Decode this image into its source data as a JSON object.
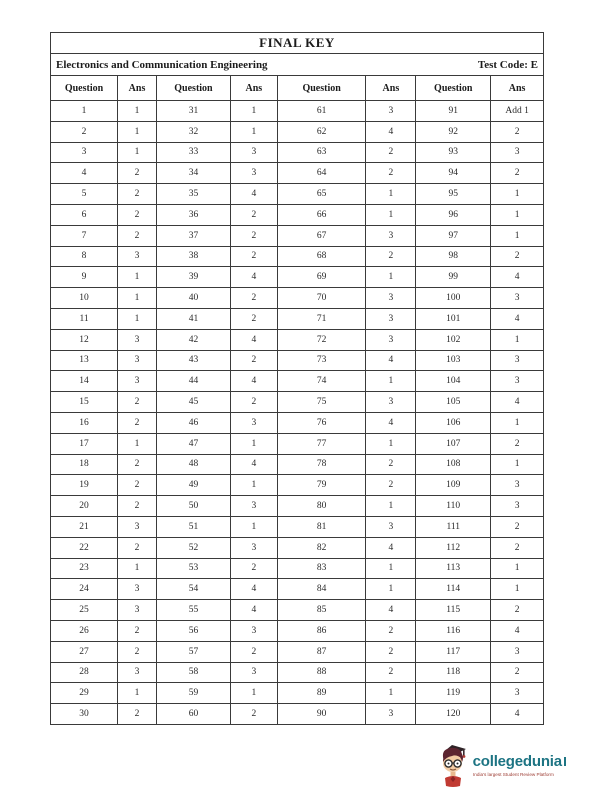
{
  "header": {
    "title": "FINAL KEY",
    "subject": "Electronics and Communication Engineering",
    "test_code": "Test Code: E"
  },
  "table": {
    "column_headers": [
      "Question",
      "Ans",
      "Question",
      "Ans",
      "Question",
      "Ans",
      "Question",
      "Ans"
    ],
    "rows": [
      [
        "1",
        "1",
        "31",
        "1",
        "61",
        "3",
        "91",
        "Add 1"
      ],
      [
        "2",
        "1",
        "32",
        "1",
        "62",
        "4",
        "92",
        "2"
      ],
      [
        "3",
        "1",
        "33",
        "3",
        "63",
        "2",
        "93",
        "3"
      ],
      [
        "4",
        "2",
        "34",
        "3",
        "64",
        "2",
        "94",
        "2"
      ],
      [
        "5",
        "2",
        "35",
        "4",
        "65",
        "1",
        "95",
        "1"
      ],
      [
        "6",
        "2",
        "36",
        "2",
        "66",
        "1",
        "96",
        "1"
      ],
      [
        "7",
        "2",
        "37",
        "2",
        "67",
        "3",
        "97",
        "1"
      ],
      [
        "8",
        "3",
        "38",
        "2",
        "68",
        "2",
        "98",
        "2"
      ],
      [
        "9",
        "1",
        "39",
        "4",
        "69",
        "1",
        "99",
        "4"
      ],
      [
        "10",
        "1",
        "40",
        "2",
        "70",
        "3",
        "100",
        "3"
      ],
      [
        "11",
        "1",
        "41",
        "2",
        "71",
        "3",
        "101",
        "4"
      ],
      [
        "12",
        "3",
        "42",
        "4",
        "72",
        "3",
        "102",
        "1"
      ],
      [
        "13",
        "3",
        "43",
        "2",
        "73",
        "4",
        "103",
        "3"
      ],
      [
        "14",
        "3",
        "44",
        "4",
        "74",
        "1",
        "104",
        "3"
      ],
      [
        "15",
        "2",
        "45",
        "2",
        "75",
        "3",
        "105",
        "4"
      ],
      [
        "16",
        "2",
        "46",
        "3",
        "76",
        "4",
        "106",
        "1"
      ],
      [
        "17",
        "1",
        "47",
        "1",
        "77",
        "1",
        "107",
        "2"
      ],
      [
        "18",
        "2",
        "48",
        "4",
        "78",
        "2",
        "108",
        "1"
      ],
      [
        "19",
        "2",
        "49",
        "1",
        "79",
        "2",
        "109",
        "3"
      ],
      [
        "20",
        "2",
        "50",
        "3",
        "80",
        "1",
        "110",
        "3"
      ],
      [
        "21",
        "3",
        "51",
        "1",
        "81",
        "3",
        "111",
        "2"
      ],
      [
        "22",
        "2",
        "52",
        "3",
        "82",
        "4",
        "112",
        "2"
      ],
      [
        "23",
        "1",
        "53",
        "2",
        "83",
        "1",
        "113",
        "1"
      ],
      [
        "24",
        "3",
        "54",
        "4",
        "84",
        "1",
        "114",
        "1"
      ],
      [
        "25",
        "3",
        "55",
        "4",
        "85",
        "4",
        "115",
        "2"
      ],
      [
        "26",
        "2",
        "56",
        "3",
        "86",
        "2",
        "116",
        "4"
      ],
      [
        "27",
        "2",
        "57",
        "2",
        "87",
        "2",
        "117",
        "3"
      ],
      [
        "28",
        "3",
        "58",
        "3",
        "88",
        "2",
        "118",
        "2"
      ],
      [
        "29",
        "1",
        "59",
        "1",
        "89",
        "1",
        "119",
        "3"
      ],
      [
        "30",
        "2",
        "60",
        "2",
        "90",
        "3",
        "120",
        "4"
      ]
    ]
  },
  "footer": {
    "logo_text": "collegedunia",
    "logo_tagline": "India's largest Student Review Platform",
    "logo_text_color": "#1d7483",
    "logo_tagline_color": "#9c3a31"
  }
}
